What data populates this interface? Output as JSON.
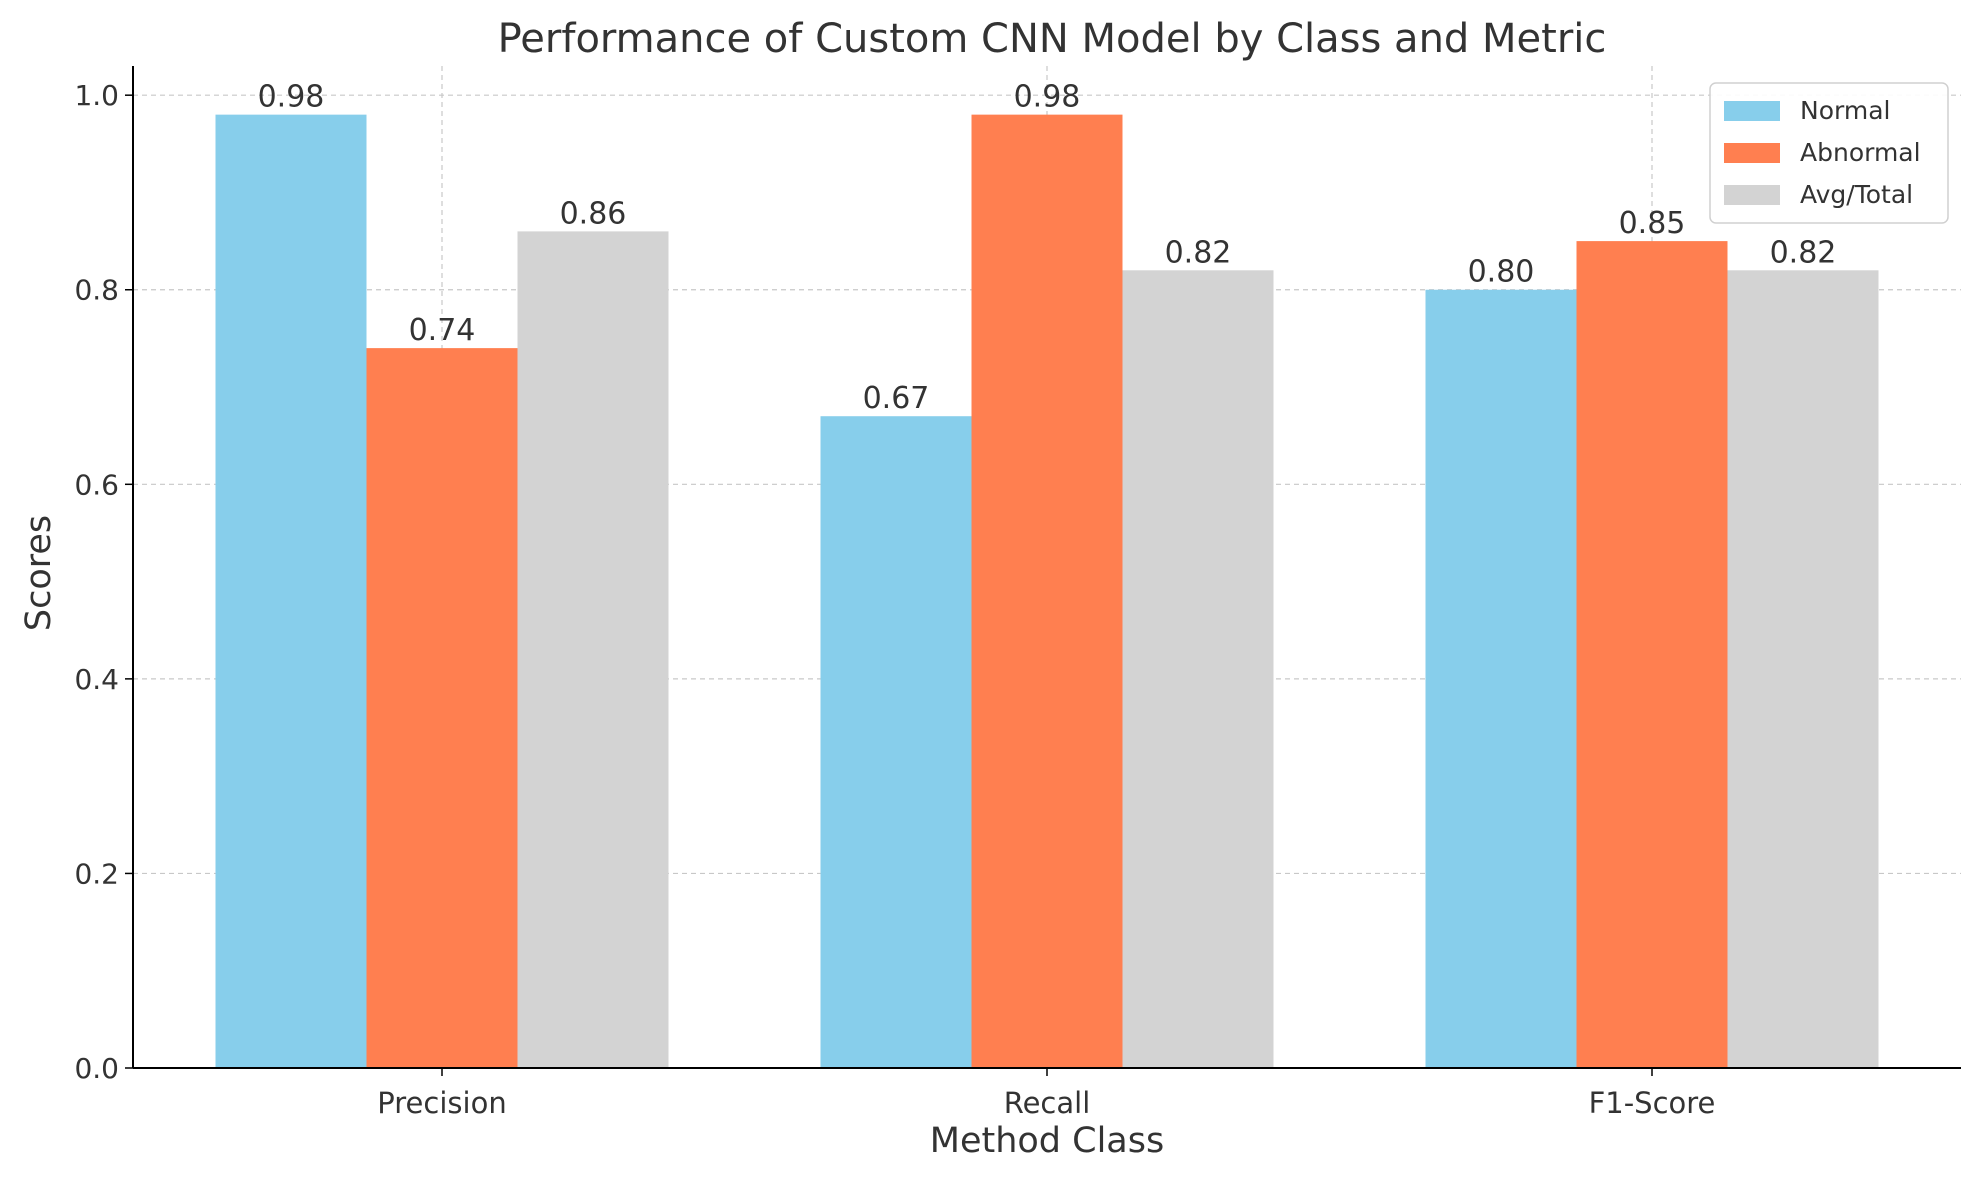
{
  "chart_data": {
    "type": "bar",
    "title": "Performance of Custom CNN Model by Class and Metric",
    "xlabel": "Method Class",
    "ylabel": "Scores",
    "categories": [
      "Precision",
      "Recall",
      "F1-Score"
    ],
    "series": [
      {
        "name": "Normal",
        "values": [
          0.98,
          0.67,
          0.8
        ],
        "color": "#87CEEB"
      },
      {
        "name": "Abnormal",
        "values": [
          0.74,
          0.98,
          0.85
        ],
        "color": "#FF7F50"
      },
      {
        "name": "Avg/Total",
        "values": [
          0.86,
          0.82,
          0.82
        ],
        "color": "#D3D3D3"
      }
    ],
    "ylim": [
      0,
      1.03
    ],
    "yticks": [
      "0.0",
      "0.2",
      "0.4",
      "0.6",
      "0.8",
      "1.0"
    ],
    "grid": true,
    "legend_position": "top-right",
    "value_label_format": "2 decimals"
  }
}
